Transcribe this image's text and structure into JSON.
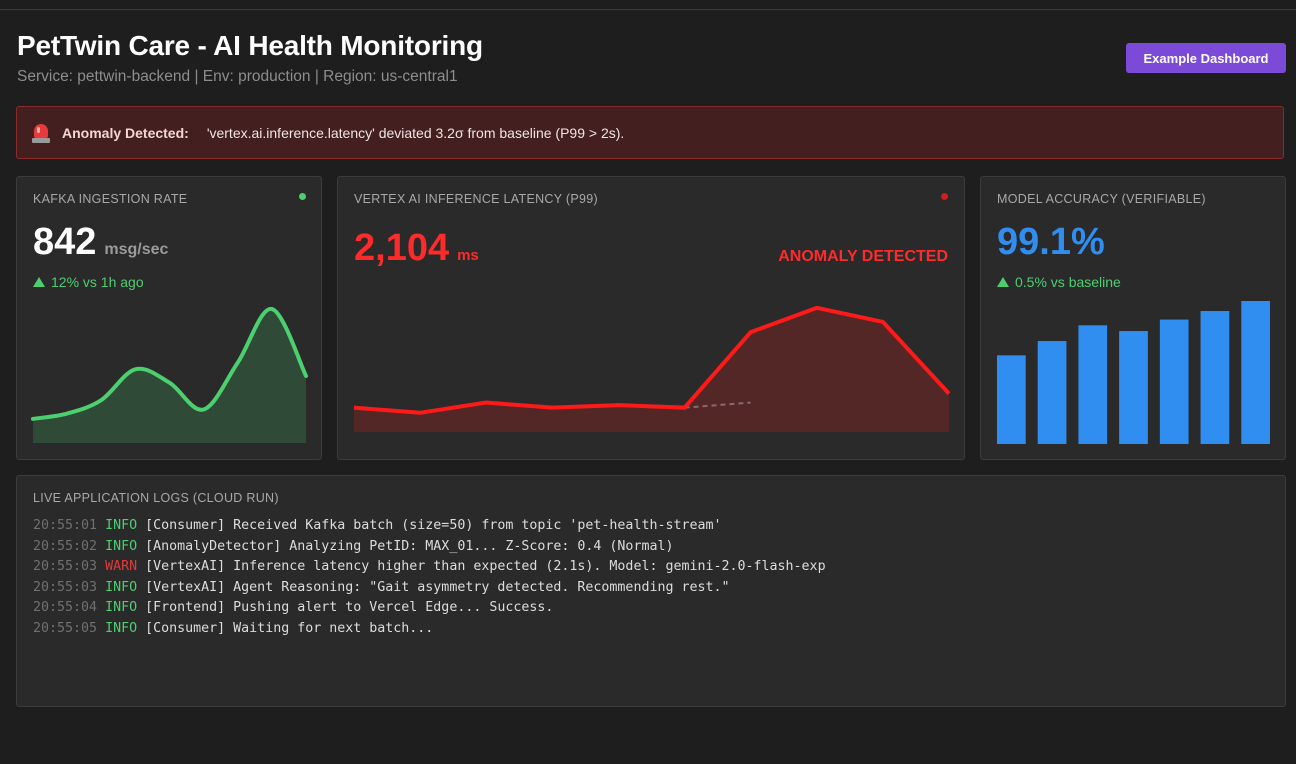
{
  "header": {
    "title": "PetTwin Care - AI Health Monitoring",
    "subtitle": "Service: pettwin-backend | Env: production | Region: us-central1",
    "button_label": "Example Dashboard"
  },
  "alert": {
    "icon": "siren-icon",
    "label": "Anomaly Detected:",
    "message": "'vertex.ai.inference.latency' deviated 3.2σ from baseline (P99 > 2s)."
  },
  "kafka": {
    "title": "KAFKA INGESTION RATE",
    "value": "842",
    "unit": "msg/sec",
    "trend": "12% vs 1h ago",
    "status_color": "#4ccf6f",
    "line_color": "#4ccf6f",
    "fill_color": "#2f4a36"
  },
  "latency": {
    "title": "VERTEX AI INFERENCE LATENCY (P99)",
    "value": "2,104",
    "unit": "ms",
    "status_text": "ANOMALY DETECTED",
    "status_color": "#cc2020",
    "line_color": "#ff1a1a",
    "fill_color": "#542727"
  },
  "accuracy": {
    "title": "MODEL ACCURACY (VERIFIABLE)",
    "value": "99.1%",
    "trend": "0.5% vs baseline",
    "bar_color": "#2f8ef0"
  },
  "logs": {
    "title": "LIVE APPLICATION LOGS (CLOUD RUN)",
    "entries": [
      {
        "time": "20:55:01",
        "level": "INFO",
        "text": "[Consumer] Received Kafka batch (size=50) from topic 'pet-health-stream'"
      },
      {
        "time": "20:55:02",
        "level": "INFO",
        "text": "[AnomalyDetector] Analyzing PetID: MAX_01... Z-Score: 0.4 (Normal)"
      },
      {
        "time": "20:55:03",
        "level": "WARN",
        "text": "[VertexAI] Inference latency higher than expected (2.1s). Model: gemini-2.0-flash-exp"
      },
      {
        "time": "20:55:03",
        "level": "INFO",
        "text": "[VertexAI] Agent Reasoning: \"Gait asymmetry detected. Recommending rest.\""
      },
      {
        "time": "20:55:04",
        "level": "INFO",
        "text": "[Frontend] Pushing alert to Vercel Edge... Success."
      },
      {
        "time": "20:55:05",
        "level": "INFO",
        "text": "[Consumer] Waiting for next batch..."
      }
    ]
  },
  "chart_data": [
    {
      "type": "area",
      "y": [
        0.18,
        0.22,
        0.32,
        0.55,
        0.45,
        0.25,
        0.6,
        1.0,
        0.5
      ]
    },
    {
      "type": "area",
      "y": [
        0.19,
        0.15,
        0.23,
        0.19,
        0.21,
        0.19,
        0.78,
        0.97,
        0.86,
        0.3
      ],
      "baseline_y": [
        0.19,
        0.23
      ]
    },
    {
      "type": "bar",
      "values": [
        0.62,
        0.72,
        0.83,
        0.79,
        0.87,
        0.93,
        1.0
      ]
    }
  ]
}
